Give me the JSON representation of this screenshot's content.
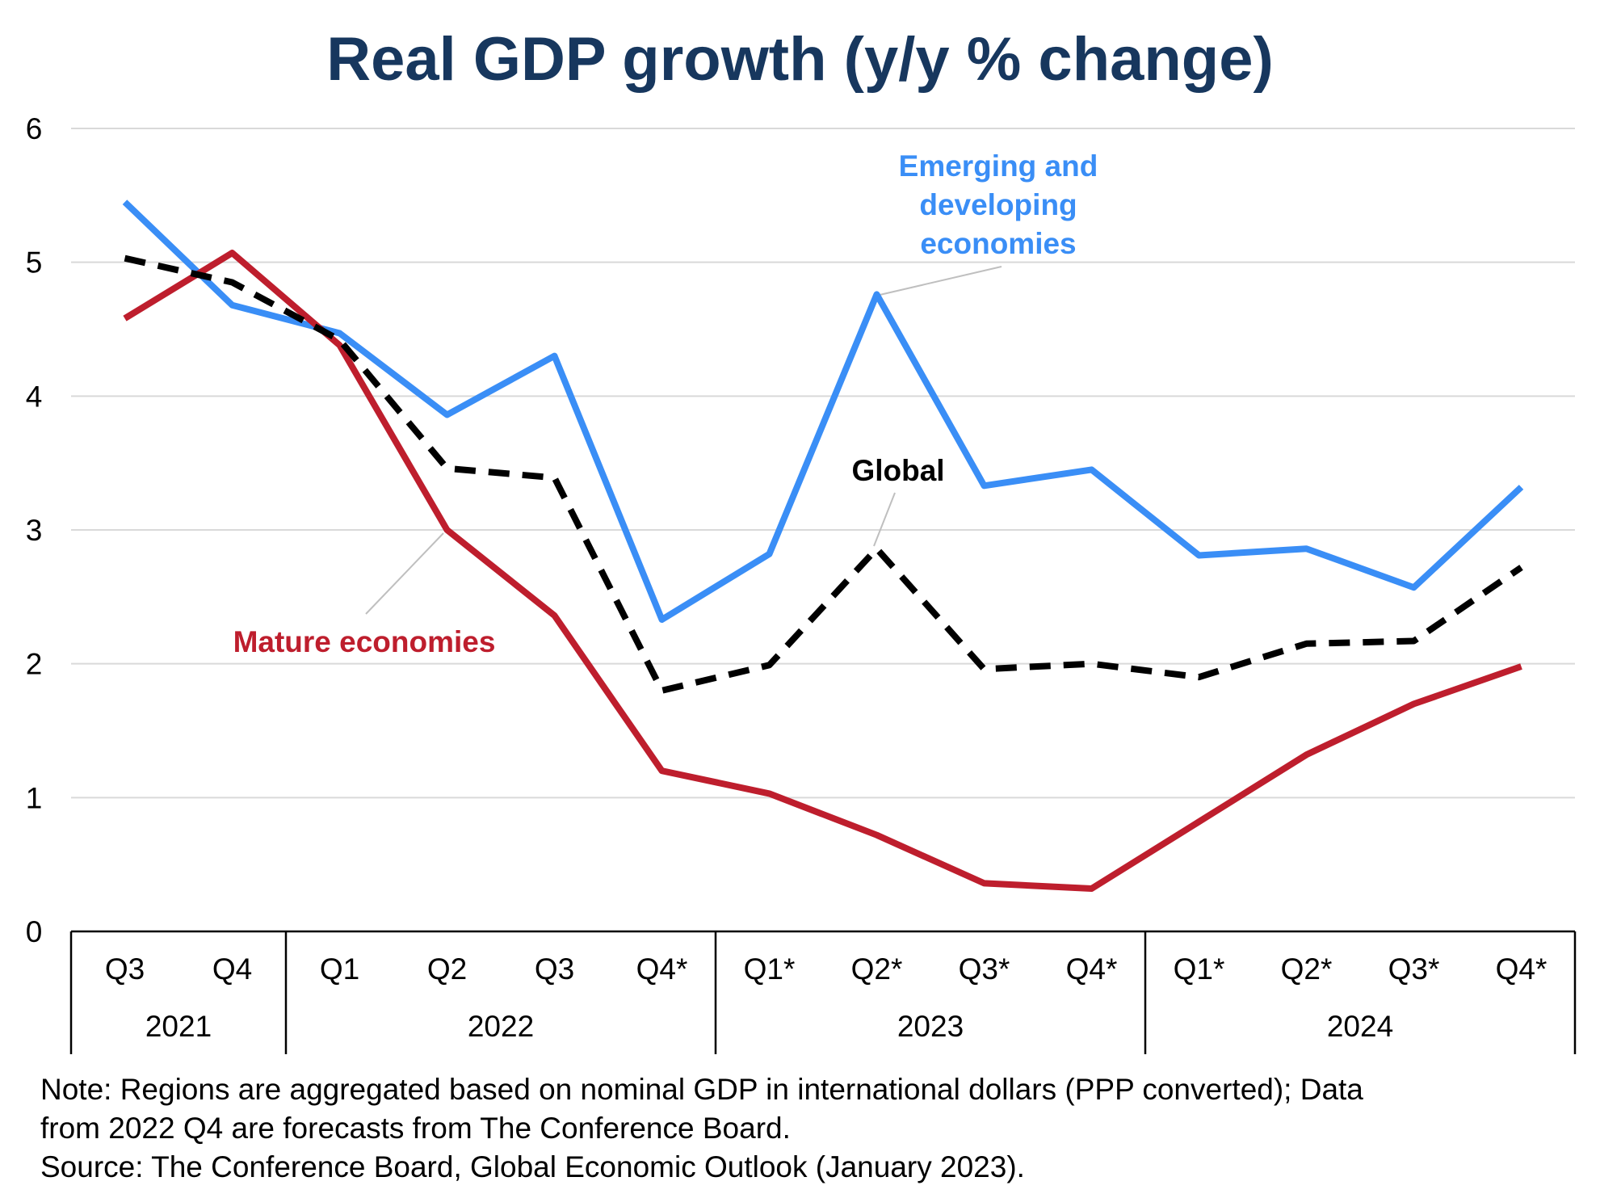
{
  "chart_data": {
    "type": "line",
    "title": "Real GDP growth (y/y % change)",
    "categories": [
      "Q3",
      "Q4",
      "Q1",
      "Q2",
      "Q3",
      "Q4*",
      "Q1*",
      "Q2*",
      "Q3*",
      "Q4*",
      "Q1*",
      "Q2*",
      "Q3*",
      "Q4*"
    ],
    "year_groups": [
      {
        "label": "2021",
        "span": 2
      },
      {
        "label": "2022",
        "span": 4
      },
      {
        "label": "2023",
        "span": 4
      },
      {
        "label": "2024",
        "span": 4
      }
    ],
    "ylim": [
      0,
      6
    ],
    "yticks": [
      0,
      1,
      2,
      3,
      4,
      5,
      6
    ],
    "grid": true,
    "series": [
      {
        "name": "Emerging and developing economies",
        "label_lines": [
          "Emerging and",
          "developing",
          "economies"
        ],
        "color": "#3a8ef6",
        "dashed": false,
        "values": [
          5.45,
          4.68,
          4.47,
          3.86,
          4.3,
          2.33,
          2.82,
          4.76,
          3.33,
          3.45,
          2.81,
          2.86,
          2.57,
          3.32
        ]
      },
      {
        "name": "Global",
        "label_lines": [
          "Global"
        ],
        "color": "#000000",
        "dashed": true,
        "values": [
          5.03,
          4.85,
          4.42,
          3.46,
          3.39,
          1.8,
          1.99,
          2.86,
          1.96,
          2.0,
          1.9,
          2.15,
          2.17,
          2.72
        ]
      },
      {
        "name": "Mature economies",
        "label_lines": [
          "Mature economies"
        ],
        "color": "#be1e2d",
        "dashed": false,
        "values": [
          4.58,
          5.07,
          4.38,
          3.0,
          2.36,
          1.2,
          1.03,
          0.72,
          0.36,
          0.32,
          0.82,
          1.32,
          1.7,
          1.98
        ]
      }
    ]
  },
  "footnote": {
    "note_line1": "Note: Regions are aggregated based on nominal GDP in international dollars (PPP converted); Data",
    "note_line2": "from 2022 Q4 are forecasts from The Conference Board.",
    "source": "Source: The Conference Board, Global Economic Outlook (January 2023)."
  }
}
